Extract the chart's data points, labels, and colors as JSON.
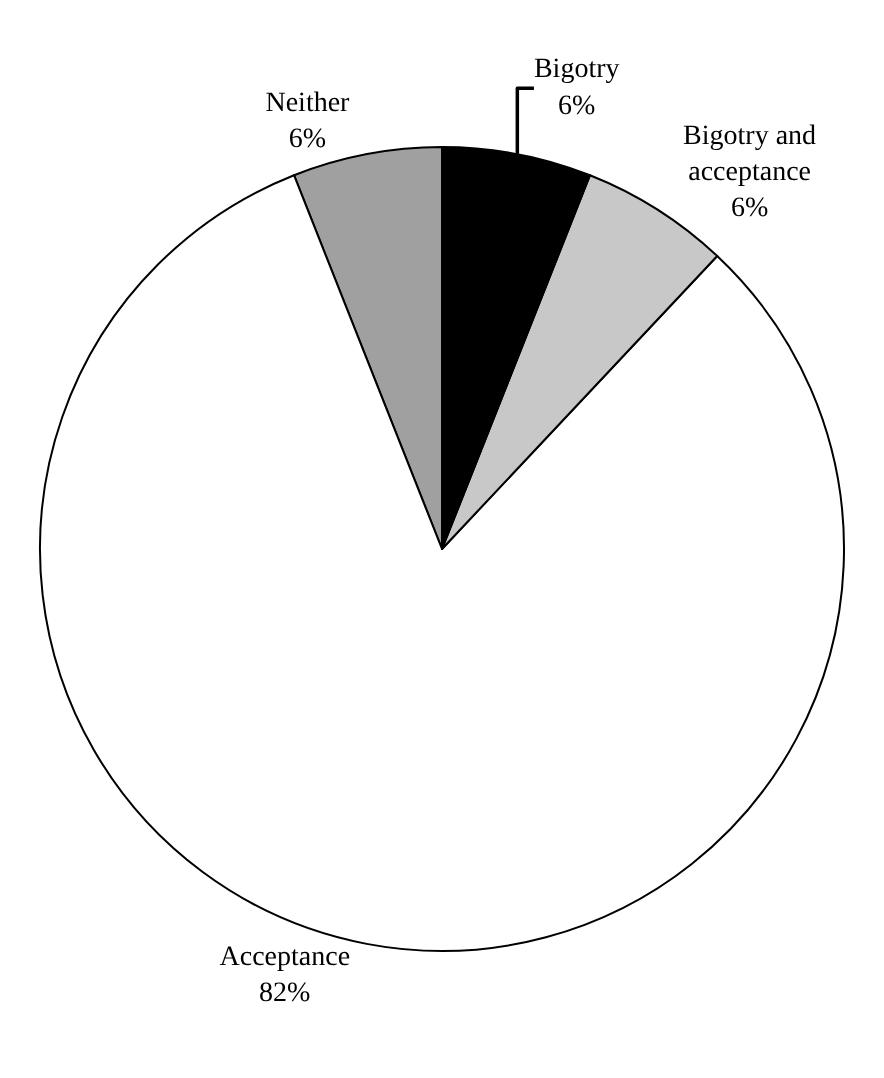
{
  "chart_data": {
    "type": "pie",
    "categories": [
      "Neither",
      "Acceptance",
      "Bigotry and acceptance",
      "Bigotry"
    ],
    "values": [
      6,
      82,
      6,
      6
    ],
    "value_labels": [
      "6%",
      "82%",
      "6%",
      "6%"
    ],
    "colors": [
      "#a0a0a0",
      "#ffffff",
      "#c8c8c8",
      "#000000"
    ],
    "legend": false
  }
}
